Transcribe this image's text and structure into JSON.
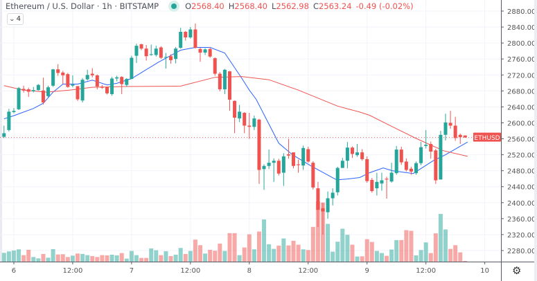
{
  "header": {
    "symbol": "Ethereum / U.S. Dollar · 1h · BITSTAMP",
    "o_label": "O",
    "o": "2568.40",
    "h_label": "H",
    "h": "2568.40",
    "l_label": "L",
    "l": "2562.98",
    "c_label": "C",
    "c": "2563.24",
    "change": "-0.49 (-0.02%)",
    "indicators_count": "4",
    "status_color": "#26a69a"
  },
  "price_label": "ETHUSD",
  "settings_icon": "gear-icon",
  "colors": {
    "up": "#26a69a",
    "down": "#ef5350",
    "fast_ma": "#2962ff",
    "slow_ma": "#ef5350"
  },
  "chart_data": {
    "type": "candlestick",
    "title": "Ethereum / U.S. Dollar · 1h · BITSTAMP",
    "ylim": [
      2260,
      2900
    ],
    "y_ticks": [
      "2880.00",
      "2840.00",
      "2800.00",
      "2760.00",
      "2720.00",
      "2680.00",
      "2640.00",
      "2600.00",
      "2560.00",
      "2520.00",
      "2480.00",
      "2440.00",
      "2400.00",
      "2360.00",
      "2320.00",
      "2280.00"
    ],
    "x_ticks": [
      {
        "candle": 2,
        "label": "6"
      },
      {
        "candle": 14,
        "label": "12:00"
      },
      {
        "candle": 26,
        "label": "7"
      },
      {
        "candle": 38,
        "label": "12:00"
      },
      {
        "candle": 50,
        "label": "8"
      },
      {
        "candle": 62,
        "label": "12:00"
      },
      {
        "candle": 74,
        "label": "9"
      },
      {
        "candle": 86,
        "label": "12:00"
      },
      {
        "candle": 98,
        "label": "10"
      }
    ],
    "last_price": 2563.24,
    "grid": true,
    "ohlc": [
      [
        2565,
        2593,
        2562,
        2574
      ],
      [
        2582,
        2635,
        2578,
        2628
      ],
      [
        2627,
        2637,
        2624,
        2630
      ],
      [
        2634,
        2690,
        2632,
        2687
      ],
      [
        2685,
        2693,
        2676,
        2681
      ],
      [
        2684,
        2688,
        2665,
        2678
      ],
      [
        2679,
        2690,
        2676,
        2682
      ],
      [
        2682,
        2697,
        2681,
        2695
      ],
      [
        2681,
        2713,
        2646,
        2651
      ],
      [
        2667,
        2693,
        2664,
        2689
      ],
      [
        2693,
        2735,
        2690,
        2734
      ],
      [
        2734,
        2747,
        2718,
        2725
      ],
      [
        2726,
        2730,
        2697,
        2719
      ],
      [
        2722,
        2725,
        2688,
        2690
      ],
      [
        2693,
        2719,
        2689,
        2696
      ],
      [
        2692,
        2692,
        2655,
        2659
      ],
      [
        2656,
        2712,
        2651,
        2708
      ],
      [
        2709,
        2733,
        2706,
        2720
      ],
      [
        2723,
        2737,
        2714,
        2719
      ],
      [
        2719,
        2721,
        2684,
        2691
      ],
      [
        2691,
        2695,
        2685,
        2688
      ],
      [
        2690,
        2691,
        2671,
        2674
      ],
      [
        2672,
        2715,
        2668,
        2711
      ],
      [
        2711,
        2718,
        2704,
        2714
      ],
      [
        2715,
        2717,
        2672,
        2697
      ],
      [
        2695,
        2712,
        2690,
        2710
      ],
      [
        2710,
        2768,
        2709,
        2763
      ],
      [
        2768,
        2798,
        2750,
        2793
      ],
      [
        2797,
        2798,
        2782,
        2786
      ],
      [
        2786,
        2795,
        2756,
        2767
      ],
      [
        2770,
        2796,
        2768,
        2772
      ],
      [
        2770,
        2793,
        2766,
        2786
      ],
      [
        2789,
        2792,
        2760,
        2763
      ],
      [
        2763,
        2775,
        2736,
        2765
      ],
      [
        2767,
        2772,
        2748,
        2757
      ],
      [
        2760,
        2790,
        2749,
        2786
      ],
      [
        2788,
        2838,
        2786,
        2828
      ],
      [
        2828,
        2830,
        2806,
        2814
      ],
      [
        2814,
        2840,
        2811,
        2834
      ],
      [
        2834,
        2849,
        2786,
        2788
      ],
      [
        2785,
        2788,
        2753,
        2776
      ],
      [
        2776,
        2787,
        2770,
        2784
      ],
      [
        2785,
        2790,
        2763,
        2766
      ],
      [
        2762,
        2764,
        2718,
        2723
      ],
      [
        2723,
        2727,
        2679,
        2684
      ],
      [
        2684,
        2735,
        2672,
        2733
      ],
      [
        2729,
        2730,
        2630,
        2658
      ],
      [
        2655,
        2656,
        2574,
        2613
      ],
      [
        2611,
        2645,
        2602,
        2628
      ],
      [
        2625,
        2627,
        2574,
        2593
      ],
      [
        2593,
        2625,
        2560,
        2590
      ],
      [
        2590,
        2618,
        2582,
        2611
      ],
      [
        2608,
        2610,
        2447,
        2482
      ],
      [
        2484,
        2496,
        2432,
        2492
      ],
      [
        2492,
        2533,
        2484,
        2500
      ],
      [
        2500,
        2511,
        2452,
        2505
      ],
      [
        2505,
        2510,
        2468,
        2473
      ],
      [
        2475,
        2524,
        2442,
        2516
      ],
      [
        2521,
        2560,
        2510,
        2518
      ],
      [
        2526,
        2526,
        2486,
        2492
      ],
      [
        2496,
        2508,
        2475,
        2494
      ],
      [
        2493,
        2543,
        2482,
        2537
      ],
      [
        2534,
        2540,
        2500,
        2503
      ],
      [
        2500,
        2504,
        2433,
        2438
      ],
      [
        2436,
        2452,
        2339,
        2382
      ],
      [
        2386,
        2400,
        2320,
        2378
      ],
      [
        2376,
        2428,
        2360,
        2411
      ],
      [
        2411,
        2436,
        2393,
        2425
      ],
      [
        2426,
        2490,
        2418,
        2487
      ],
      [
        2487,
        2512,
        2487,
        2505
      ],
      [
        2505,
        2552,
        2486,
        2538
      ],
      [
        2538,
        2541,
        2512,
        2522
      ],
      [
        2519,
        2547,
        2515,
        2526
      ],
      [
        2526,
        2534,
        2505,
        2509
      ],
      [
        2509,
        2516,
        2450,
        2454
      ],
      [
        2457,
        2462,
        2425,
        2429
      ],
      [
        2436,
        2475,
        2418,
        2452
      ],
      [
        2448,
        2475,
        2430,
        2456
      ],
      [
        2460,
        2465,
        2410,
        2458
      ],
      [
        2453,
        2500,
        2450,
        2475
      ],
      [
        2474,
        2542,
        2470,
        2533
      ],
      [
        2533,
        2540,
        2495,
        2501
      ],
      [
        2503,
        2511,
        2478,
        2482
      ],
      [
        2485,
        2490,
        2470,
        2478
      ],
      [
        2474,
        2503,
        2470,
        2499
      ],
      [
        2499,
        2552,
        2494,
        2539
      ],
      [
        2542,
        2582,
        2536,
        2545
      ],
      [
        2547,
        2553,
        2510,
        2528
      ],
      [
        2531,
        2535,
        2447,
        2456
      ],
      [
        2458,
        2580,
        2458,
        2570
      ],
      [
        2570,
        2623,
        2556,
        2601
      ],
      [
        2600,
        2630,
        2585,
        2593
      ],
      [
        2593,
        2615,
        2555,
        2562
      ],
      [
        2570,
        2573,
        2547,
        2564
      ],
      [
        2568.4,
        2568.4,
        2562.98,
        2563.24
      ]
    ],
    "volume_relative": [
      38,
      44,
      48,
      53,
      28,
      51,
      20,
      14,
      33,
      17,
      54,
      31,
      32,
      20,
      26,
      35,
      33,
      28,
      24,
      20,
      28,
      27,
      30,
      27,
      37,
      13,
      46,
      28,
      16,
      16,
      57,
      49,
      28,
      45,
      24,
      30,
      59,
      33,
      46,
      95,
      71,
      35,
      51,
      47,
      78,
      46,
      123,
      123,
      28,
      61,
      118,
      53,
      130,
      182,
      75,
      55,
      69,
      100,
      70,
      90,
      73,
      53,
      50,
      150,
      260,
      255,
      163,
      43,
      86,
      142,
      116,
      73,
      22,
      23,
      97,
      85,
      46,
      37,
      25,
      52,
      93,
      93,
      136,
      133,
      27,
      50,
      83,
      37,
      122,
      206,
      139,
      55,
      71,
      40,
      3
    ],
    "overlays": [
      {
        "color": "#2962ff",
        "points": [
          [
            0,
            2610
          ],
          [
            2,
            2618
          ],
          [
            6,
            2636
          ],
          [
            8,
            2649
          ],
          [
            10,
            2677
          ],
          [
            12,
            2697
          ],
          [
            15,
            2697
          ],
          [
            18,
            2707
          ],
          [
            21,
            2695
          ],
          [
            23,
            2699
          ],
          [
            26,
            2711
          ],
          [
            31.5,
            2752
          ],
          [
            36,
            2782
          ],
          [
            39,
            2789
          ],
          [
            42,
            2789
          ],
          [
            45,
            2775
          ],
          [
            48.5,
            2711
          ],
          [
            50,
            2682
          ],
          [
            51.4,
            2659
          ],
          [
            56,
            2549
          ],
          [
            58.8,
            2520
          ],
          [
            62.6,
            2492
          ],
          [
            67.8,
            2457
          ],
          [
            69.8,
            2459
          ],
          [
            72.5,
            2463
          ],
          [
            74.5,
            2475
          ],
          [
            77.3,
            2487
          ],
          [
            79.2,
            2480
          ],
          [
            83.4,
            2473
          ],
          [
            87.6,
            2506
          ],
          [
            90,
            2520
          ],
          [
            94.5,
            2552
          ]
        ]
      },
      {
        "color": "#ef5350",
        "points": [
          [
            0,
            2693
          ],
          [
            4,
            2682
          ],
          [
            8.6,
            2677
          ],
          [
            13.3,
            2682
          ],
          [
            18,
            2689
          ],
          [
            24.6,
            2691
          ],
          [
            36,
            2692
          ],
          [
            43,
            2714
          ],
          [
            48.5,
            2716
          ],
          [
            54,
            2708
          ],
          [
            60,
            2682
          ],
          [
            68,
            2642
          ],
          [
            72.5,
            2627
          ],
          [
            74.5,
            2619
          ],
          [
            79.2,
            2590
          ],
          [
            84,
            2561
          ],
          [
            89.6,
            2530
          ],
          [
            94.5,
            2516
          ]
        ]
      }
    ]
  }
}
